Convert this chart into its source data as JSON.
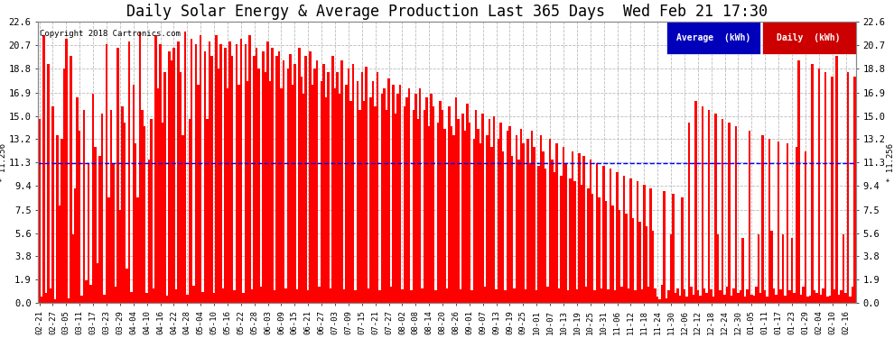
{
  "title": "Daily Solar Energy & Average Production Last 365 Days  Wed Feb 21 17:30",
  "copyright": "Copyright 2018 Cartronics.com",
  "average": 11.256,
  "yticks": [
    0.0,
    1.9,
    3.8,
    5.6,
    7.5,
    9.4,
    11.3,
    13.2,
    15.0,
    16.9,
    18.8,
    20.7,
    22.6
  ],
  "ylim": [
    0.0,
    22.6
  ],
  "bar_color": "#ff0000",
  "avg_line_color": "#0000ff",
  "background_color": "#ffffff",
  "plot_bg_color": "#ffffff",
  "grid_color": "#bbbbbb",
  "title_fontsize": 12,
  "avg_label": "Average  (kWh)",
  "daily_label": "Daily  (kWh)",
  "avg_legend_color": "#0000bb",
  "daily_legend_color": "#cc0000",
  "legend_text_color": "#ffffff",
  "xtick_dates": [
    "02-21",
    "02-27",
    "03-05",
    "03-11",
    "03-17",
    "03-23",
    "03-29",
    "04-04",
    "04-10",
    "04-16",
    "04-22",
    "04-28",
    "05-04",
    "05-10",
    "05-16",
    "05-22",
    "05-28",
    "06-03",
    "06-09",
    "06-15",
    "06-21",
    "06-27",
    "07-03",
    "07-09",
    "07-15",
    "07-21",
    "07-27",
    "08-02",
    "08-08",
    "08-14",
    "08-20",
    "08-26",
    "09-01",
    "09-07",
    "09-13",
    "09-19",
    "09-25",
    "10-01",
    "10-07",
    "10-13",
    "10-19",
    "10-25",
    "10-31",
    "11-06",
    "11-12",
    "11-18",
    "11-24",
    "11-30",
    "12-06",
    "12-12",
    "12-18",
    "12-24",
    "12-30",
    "01-05",
    "01-11",
    "01-17",
    "01-23",
    "01-29",
    "02-04",
    "02-10",
    "02-16"
  ],
  "xtick_positions": [
    0,
    6,
    12,
    18,
    24,
    30,
    36,
    42,
    48,
    54,
    60,
    66,
    72,
    78,
    84,
    90,
    96,
    102,
    108,
    114,
    120,
    126,
    132,
    138,
    144,
    150,
    156,
    162,
    168,
    174,
    180,
    186,
    192,
    198,
    204,
    210,
    216,
    222,
    228,
    234,
    240,
    246,
    252,
    258,
    264,
    270,
    276,
    282,
    288,
    294,
    300,
    306,
    312,
    318,
    324,
    330,
    336,
    342,
    348,
    354,
    360
  ],
  "values": [
    14.8,
    0.5,
    21.5,
    0.8,
    19.2,
    1.2,
    15.8,
    0.3,
    13.5,
    7.8,
    13.2,
    18.8,
    21.2,
    0.4,
    19.8,
    5.5,
    9.2,
    16.5,
    13.8,
    0.6,
    15.5,
    1.8,
    11.2,
    1.5,
    16.8,
    12.5,
    3.2,
    11.8,
    15.2,
    0.7,
    20.8,
    8.5,
    15.5,
    11.2,
    1.3,
    20.5,
    7.5,
    15.8,
    14.5,
    2.8,
    21.0,
    0.9,
    17.5,
    12.8,
    8.5,
    21.8,
    15.5,
    14.2,
    0.8,
    11.5,
    14.8,
    1.2,
    21.5,
    17.2,
    20.8,
    14.5,
    18.5,
    0.6,
    20.2,
    19.5,
    20.5,
    1.1,
    21.0,
    18.5,
    13.5,
    21.8,
    0.7,
    14.8,
    21.2,
    1.4,
    20.8,
    17.5,
    21.5,
    0.9,
    20.2,
    14.8,
    21.0,
    19.8,
    0.8,
    21.5,
    18.8,
    20.8,
    1.2,
    20.5,
    17.2,
    21.0,
    19.8,
    1.0,
    20.8,
    17.5,
    21.2,
    0.8,
    20.8,
    17.8,
    21.5,
    1.1,
    19.8,
    20.5,
    18.8,
    1.3,
    20.2,
    18.5,
    21.0,
    17.8,
    20.5,
    1.0,
    19.8,
    20.2,
    17.2,
    19.5,
    1.2,
    18.8,
    20.0,
    17.5,
    19.2,
    1.1,
    20.5,
    18.2,
    16.8,
    19.8,
    1.0,
    20.2,
    17.5,
    18.8,
    19.5,
    1.3,
    17.8,
    19.2,
    16.5,
    18.5,
    1.2,
    19.8,
    17.2,
    18.5,
    16.8,
    19.5,
    1.1,
    17.5,
    18.8,
    16.2,
    19.2,
    1.0,
    17.8,
    15.5,
    18.5,
    16.2,
    19.0,
    1.2,
    16.5,
    17.8,
    15.8,
    18.5,
    1.0,
    16.8,
    17.2,
    15.5,
    18.0,
    1.3,
    17.5,
    15.2,
    16.8,
    17.5,
    1.1,
    15.8,
    16.5,
    17.2,
    1.0,
    15.5,
    16.8,
    14.8,
    17.2,
    1.2,
    15.5,
    16.5,
    14.2,
    16.8,
    15.8,
    1.0,
    14.5,
    16.2,
    15.5,
    14.0,
    1.2,
    15.8,
    14.2,
    13.5,
    16.5,
    14.8,
    1.1,
    15.2,
    13.8,
    16.0,
    14.5,
    1.0,
    13.2,
    15.5,
    14.0,
    12.8,
    15.2,
    1.3,
    13.5,
    14.8,
    12.5,
    15.0,
    1.1,
    13.2,
    14.5,
    12.2,
    1.0,
    13.8,
    14.2,
    11.8,
    1.2,
    13.5,
    11.5,
    14.0,
    12.8,
    1.1,
    13.2,
    11.2,
    13.8,
    12.5,
    1.0,
    11.0,
    13.5,
    12.2,
    10.8,
    1.3,
    13.2,
    11.5,
    10.5,
    12.8,
    1.2,
    10.2,
    12.5,
    11.2,
    1.0,
    10.0,
    12.2,
    9.8,
    1.1,
    12.0,
    9.5,
    11.8,
    1.3,
    9.2,
    11.5,
    8.8,
    1.0,
    11.2,
    8.5,
    1.2,
    11.0,
    8.2,
    1.1,
    10.8,
    7.8,
    1.0,
    10.5,
    7.5,
    1.3,
    10.2,
    7.2,
    1.2,
    10.0,
    6.8,
    1.0,
    9.8,
    6.5,
    1.1,
    9.5,
    6.2,
    1.3,
    9.2,
    5.8,
    1.2,
    0.5,
    0.3,
    1.5,
    9.0,
    0.4,
    1.0,
    5.5,
    8.8,
    0.8,
    1.2,
    0.6,
    8.5,
    1.1,
    0.5,
    14.5,
    1.3,
    0.7,
    16.2,
    1.0,
    0.6,
    15.8,
    1.2,
    0.8,
    15.5,
    1.1,
    0.5,
    15.2,
    5.5,
    1.0,
    14.8,
    0.7,
    1.3,
    14.5,
    0.6,
    1.2,
    14.2,
    0.8,
    1.0,
    5.2,
    0.5,
    1.1,
    13.8,
    0.7,
    0.6,
    1.3,
    5.5,
    0.8,
    13.5,
    1.0,
    0.5,
    13.2,
    5.8,
    1.2,
    0.7,
    13.0,
    1.1,
    5.5,
    0.6,
    12.8,
    1.0,
    5.2,
    0.8,
    12.5,
    19.5,
    0.7,
    1.3,
    12.2,
    0.5,
    0.6,
    19.2,
    1.0,
    0.8,
    18.8,
    0.7,
    1.2,
    18.5,
    0.5,
    0.6,
    18.2,
    1.1,
    19.8,
    0.7,
    1.0,
    5.5,
    0.8,
    18.5,
    0.5,
    1.3,
    18.2
  ]
}
